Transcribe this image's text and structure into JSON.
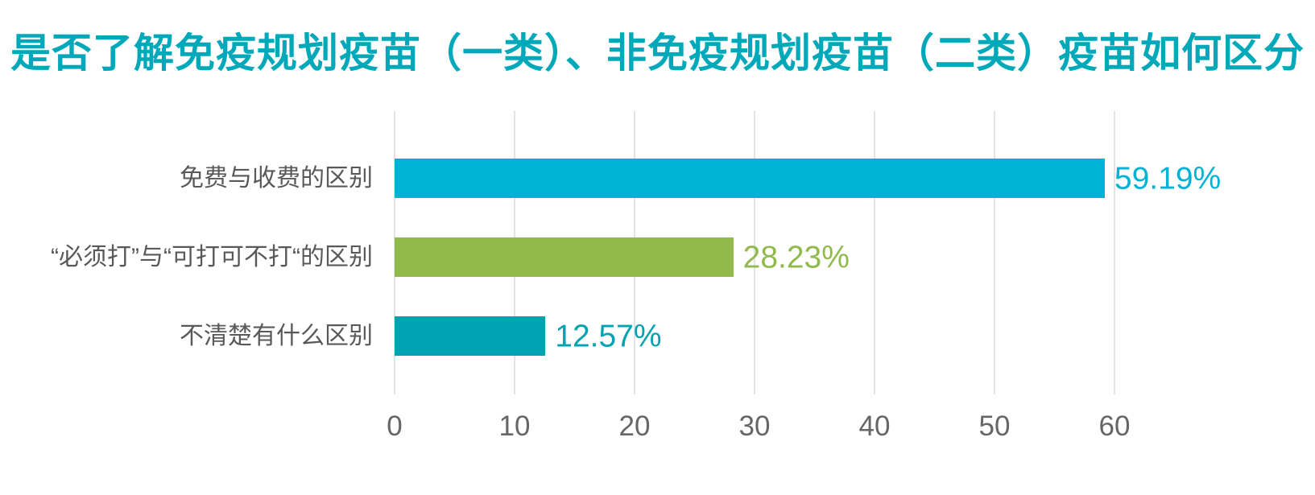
{
  "chart_data": {
    "type": "bar",
    "orientation": "horizontal",
    "title": "是否了解免疫规划疫苗（一类）、非免疫规划疫苗（二类）疫苗如何区分",
    "categories": [
      "免费与收费的区别",
      "“必须打”与“可打可不打“的区别",
      "不清楚有什么区别"
    ],
    "values": [
      59.19,
      28.23,
      12.57
    ],
    "value_labels": [
      "59.19%",
      "28.23%",
      "12.57%"
    ],
    "bar_colors": [
      "#00b2d4",
      "#90ba4c",
      "#00a3b2"
    ],
    "x_ticks": [
      0,
      10,
      20,
      30,
      40,
      50,
      60
    ],
    "xlim": [
      0,
      60
    ],
    "xlabel": "",
    "ylabel": "",
    "grid": "vertical-gridlines-only",
    "legend": "none"
  },
  "style": {
    "title_color": "#00a9ba",
    "gridline_color": "#e4e4e4",
    "tick_label_color": "#666666",
    "category_label_color": "#58595b",
    "background": "#ffffff"
  }
}
